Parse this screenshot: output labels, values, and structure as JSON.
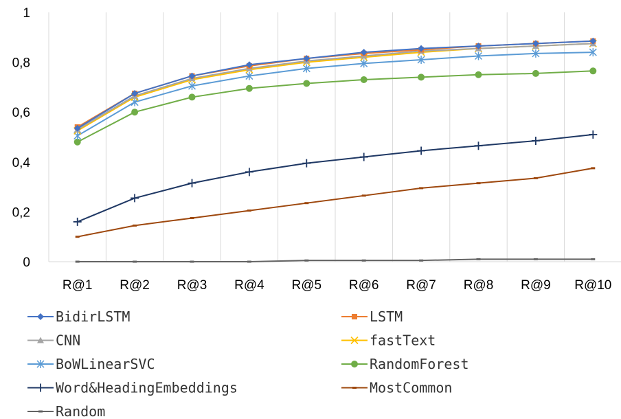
{
  "chart_data": {
    "type": "line",
    "title": "",
    "xlabel": "",
    "ylabel": "",
    "categories": [
      "R@1",
      "R@2",
      "R@3",
      "R@4",
      "R@5",
      "R@6",
      "R@7",
      "R@8",
      "R@9",
      "R@10"
    ],
    "ylim": [
      0,
      1
    ],
    "yticks": [
      "0",
      "0,2",
      "0,4",
      "0,6",
      "0,8",
      "1"
    ],
    "grid": "vertical",
    "legend_position": "bottom",
    "series": [
      {
        "name": "BidirLSTM",
        "color": "#4472C4",
        "marker": "diamond",
        "values": [
          0.535,
          0.675,
          0.745,
          0.79,
          0.815,
          0.84,
          0.855,
          0.865,
          0.875,
          0.885
        ]
      },
      {
        "name": "LSTM",
        "color": "#ED7D31",
        "marker": "square",
        "values": [
          0.54,
          0.675,
          0.745,
          0.785,
          0.815,
          0.835,
          0.85,
          0.865,
          0.875,
          0.885
        ]
      },
      {
        "name": "CNN",
        "color": "#A5A5A5",
        "marker": "triangle",
        "values": [
          0.53,
          0.665,
          0.735,
          0.775,
          0.805,
          0.825,
          0.845,
          0.855,
          0.865,
          0.875
        ]
      },
      {
        "name": "fastText",
        "color": "#FFC000",
        "marker": "x",
        "values": [
          0.525,
          0.66,
          0.73,
          0.77,
          0.8,
          0.82,
          0.84,
          0.855,
          0.865,
          0.875
        ]
      },
      {
        "name": "BoWLinearSVC",
        "color": "#5B9BD5",
        "marker": "asterisk",
        "values": [
          0.505,
          0.64,
          0.705,
          0.745,
          0.775,
          0.795,
          0.81,
          0.825,
          0.835,
          0.84
        ]
      },
      {
        "name": "RandomForest",
        "color": "#70AD47",
        "marker": "circle",
        "values": [
          0.48,
          0.6,
          0.66,
          0.695,
          0.715,
          0.73,
          0.74,
          0.75,
          0.755,
          0.765
        ]
      },
      {
        "name": "Word&HeadingEmbeddings",
        "color": "#1F3864",
        "marker": "plus",
        "values": [
          0.16,
          0.255,
          0.315,
          0.36,
          0.395,
          0.42,
          0.445,
          0.465,
          0.485,
          0.51
        ]
      },
      {
        "name": "MostCommon",
        "color": "#9E480E",
        "marker": "dash",
        "values": [
          0.1,
          0.145,
          0.175,
          0.205,
          0.235,
          0.265,
          0.295,
          0.315,
          0.335,
          0.375
        ]
      },
      {
        "name": "Random",
        "color": "#636363",
        "marker": "dash",
        "values": [
          0.0,
          0.0,
          0.0,
          0.0,
          0.005,
          0.005,
          0.005,
          0.01,
          0.01,
          0.01
        ]
      }
    ]
  }
}
